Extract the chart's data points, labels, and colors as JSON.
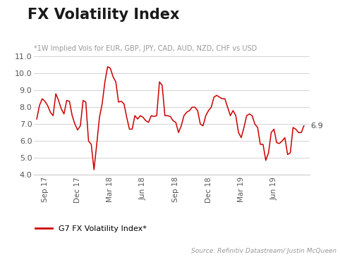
{
  "title": "FX Volatility Index",
  "subtitle": "*1W Implied Vols for EUR, GBP, JPY, CAD, AUD, NZD, CHF vs USD",
  "legend_label": "G7 FX Volatility Index*",
  "source_text": "Source: Refinitiv Datastream/ Justin McQueen",
  "last_value_label": "6.9",
  "line_color": "#cc0000",
  "ylim": [
    4.0,
    11.0
  ],
  "yticks": [
    4.0,
    5.0,
    6.0,
    7.0,
    8.0,
    9.0,
    10.0,
    11.0
  ],
  "xtick_labels": [
    "Sep 17",
    "Dec 17",
    "Mar 18",
    "Jun 18",
    "Sep 18",
    "Dec 18",
    "Mar 19",
    "Jun 19"
  ],
  "background_color": "#ffffff",
  "grid_color": "#cccccc",
  "title_fontsize": 15,
  "subtitle_fontsize": 7.0,
  "y_values": [
    7.3,
    8.1,
    8.5,
    8.35,
    8.1,
    7.7,
    7.5,
    8.8,
    8.4,
    7.9,
    7.6,
    8.4,
    8.35,
    7.5,
    7.0,
    6.65,
    6.9,
    8.4,
    8.3,
    6.0,
    5.8,
    4.3,
    5.8,
    7.4,
    8.2,
    9.5,
    10.4,
    10.3,
    9.8,
    9.5,
    8.3,
    8.35,
    8.2,
    7.4,
    6.7,
    6.7,
    7.5,
    7.3,
    7.5,
    7.4,
    7.2,
    7.1,
    7.5,
    7.45,
    7.5,
    9.5,
    9.3,
    7.5,
    7.5,
    7.45,
    7.2,
    7.1,
    6.5,
    6.9,
    7.5,
    7.7,
    7.8,
    8.0,
    8.0,
    7.8,
    7.0,
    6.9,
    7.5,
    7.8,
    8.0,
    8.6,
    8.7,
    8.6,
    8.5,
    8.5,
    8.0,
    7.5,
    7.8,
    7.5,
    6.5,
    6.2,
    6.8,
    7.5,
    7.6,
    7.5,
    7.0,
    6.8,
    5.8,
    5.8,
    4.85,
    5.3,
    6.5,
    6.7,
    5.9,
    5.85,
    6.0,
    6.2,
    5.2,
    5.3,
    6.8,
    6.7,
    6.5,
    6.5,
    6.9
  ],
  "xtick_positions": [
    3,
    15,
    27,
    39,
    51,
    63,
    75,
    87
  ]
}
